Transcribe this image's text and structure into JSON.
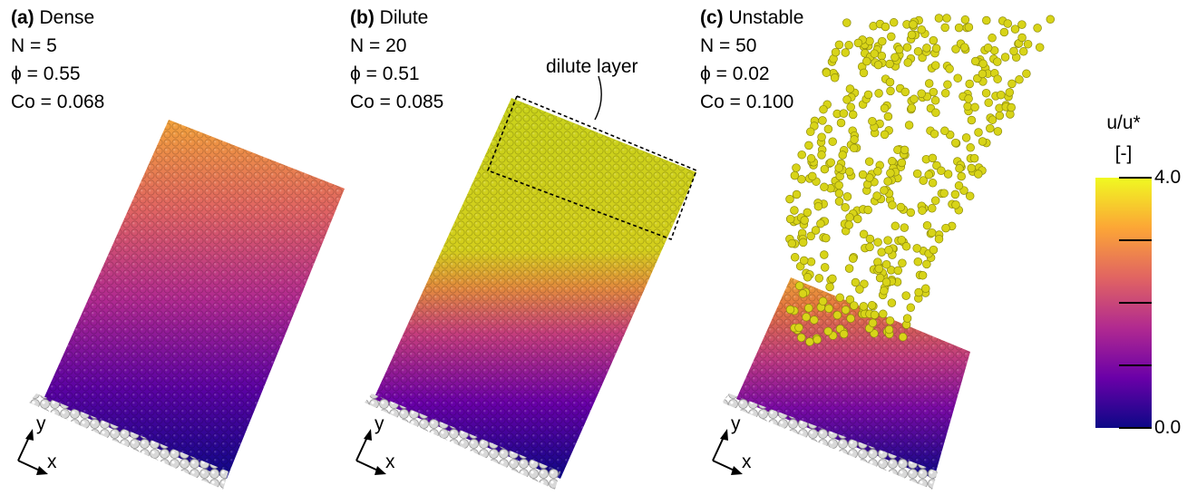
{
  "panels": [
    {
      "letter": "(a)",
      "name": "Dense",
      "n": "N = 5",
      "phi": "ϕ = 0.55",
      "co": "Co = 0.068"
    },
    {
      "letter": "(b)",
      "name": "Dilute",
      "n": "N = 20",
      "phi": "ϕ = 0.51",
      "co": "Co = 0.085"
    },
    {
      "letter": "(c)",
      "name": "Unstable",
      "n": "N = 50",
      "phi": "ϕ = 0.02",
      "co": "Co = 0.100"
    }
  ],
  "annotation": "dilute layer",
  "axes": {
    "x": "x",
    "y": "y"
  },
  "colorbar": {
    "label": "u/u*",
    "unit": "[-]",
    "max_label": "4.0",
    "min_label": "0.0",
    "colors": [
      "#0d0887",
      "#6a00a8",
      "#b12a90",
      "#e16462",
      "#fca636",
      "#f0f921"
    ]
  }
}
